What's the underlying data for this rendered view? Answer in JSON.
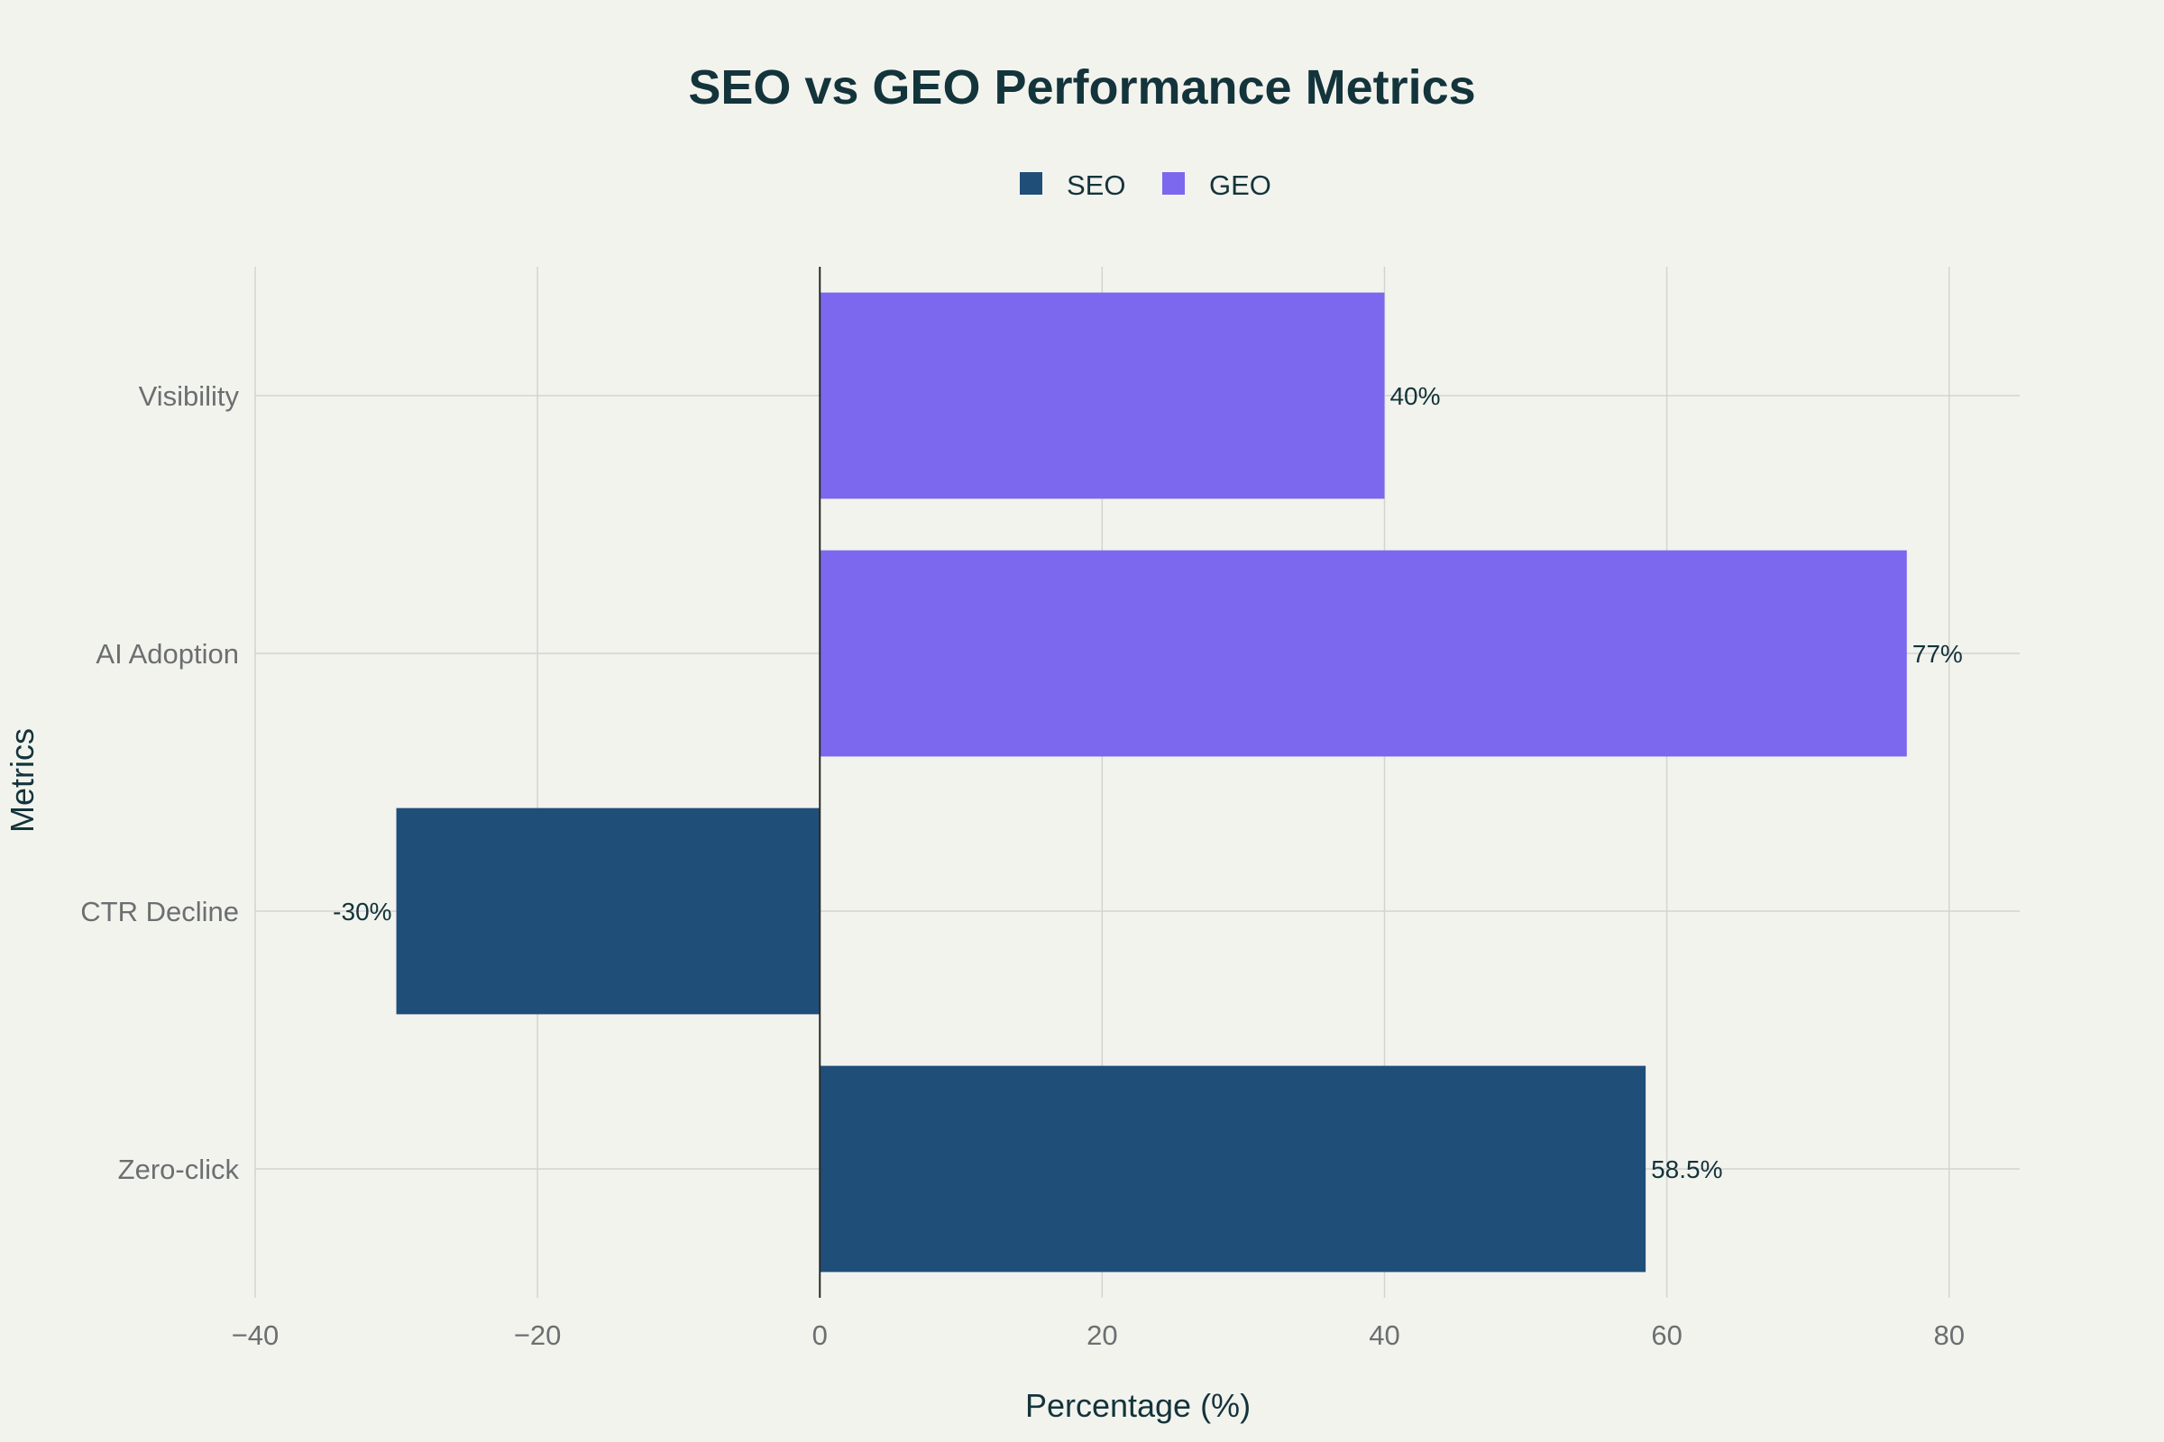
{
  "chart_data": {
    "type": "bar",
    "orientation": "horizontal",
    "title": "SEO vs GEO Performance Metrics",
    "xlabel": "Percentage (%)",
    "ylabel": "Metrics",
    "xlim": [
      -40,
      85
    ],
    "xticks": [
      -40,
      -20,
      0,
      20,
      40,
      60,
      80
    ],
    "xtick_labels": [
      "−40",
      "−20",
      "0",
      "20",
      "40",
      "60",
      "80"
    ],
    "grid": true,
    "legend_position": "top-center",
    "categories": [
      "Visibility",
      "AI Adoption",
      "CTR Decline",
      "Zero-click"
    ],
    "series": [
      {
        "name": "SEO",
        "color": "#1f4e79",
        "values": [
          null,
          null,
          -30,
          58.5
        ],
        "labels": [
          "",
          "",
          "-30%",
          "58.5%"
        ]
      },
      {
        "name": "GEO",
        "color": "#7b68ee",
        "values": [
          40,
          77,
          null,
          null
        ],
        "labels": [
          "40%",
          "77%",
          "",
          ""
        ]
      }
    ]
  }
}
